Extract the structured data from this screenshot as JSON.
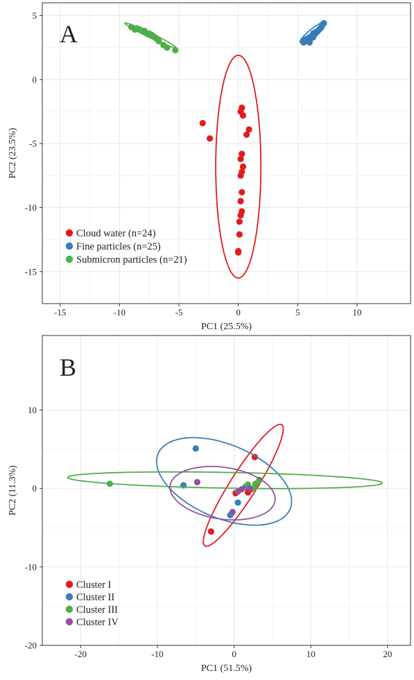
{
  "chart_data": [
    {
      "type": "scatter",
      "panel_label": "A",
      "xlabel": "PC1  (25.5%)",
      "ylabel": "PC2  (23.5%)",
      "xlim": [
        -16.5,
        14.5
      ],
      "ylim": [
        -17.5,
        6.0
      ],
      "xticks": [
        -15,
        -10,
        -5,
        0,
        5,
        10
      ],
      "yticks": [
        -15,
        -10,
        -5,
        0,
        5
      ],
      "grid": true,
      "legend_position": "bottom-left",
      "series": [
        {
          "name": "Cloud water (n=24)",
          "color": "#e41a1c",
          "points": [
            [
              0.3,
              -2.2
            ],
            [
              0.2,
              -2.5
            ],
            [
              0.4,
              -2.8
            ],
            [
              -3.0,
              -3.4
            ],
            [
              -2.4,
              -4.6
            ],
            [
              0.9,
              -3.9
            ],
            [
              0.7,
              -4.3
            ],
            [
              0.3,
              -5.8
            ],
            [
              0.2,
              -6.2
            ],
            [
              0.4,
              -6.8
            ],
            [
              0.3,
              -7.2
            ],
            [
              0.2,
              -7.5
            ],
            [
              0.3,
              -8.8
            ],
            [
              0.2,
              -9.5
            ],
            [
              0.3,
              -10.3
            ],
            [
              0.2,
              -10.6
            ],
            [
              0.1,
              -11.1
            ],
            [
              0.1,
              -12.1
            ],
            [
              0.0,
              -13.4
            ],
            [
              0.0,
              -13.5
            ]
          ],
          "ellipse": {
            "cx": 0.0,
            "cy": -6.8,
            "rx": 1.9,
            "ry": 8.7,
            "angle_deg": 0
          }
        },
        {
          "name": "Fine particles (n=25)",
          "color": "#377eb8",
          "points": [
            [
              5.5,
              2.9
            ],
            [
              5.6,
              3.1
            ],
            [
              5.8,
              3.2
            ],
            [
              6.0,
              3.3
            ],
            [
              6.2,
              3.4
            ],
            [
              6.3,
              3.6
            ],
            [
              6.5,
              3.7
            ],
            [
              6.7,
              3.8
            ],
            [
              6.8,
              3.9
            ],
            [
              7.0,
              4.1
            ],
            [
              7.1,
              4.3
            ],
            [
              6.4,
              3.5
            ],
            [
              6.1,
              3.2
            ],
            [
              5.7,
              3.0
            ],
            [
              6.9,
              4.0
            ],
            [
              6.6,
              3.7
            ],
            [
              5.9,
              3.1
            ],
            [
              6.3,
              3.3
            ],
            [
              7.2,
              4.4
            ],
            [
              6.0,
              2.9
            ],
            [
              5.5,
              3.0
            ]
          ],
          "ellipse": {
            "cx": 6.3,
            "cy": 3.7,
            "rx": 1.35,
            "ry": 0.28,
            "angle_deg": 36
          }
        },
        {
          "name": "Submicron particles (n=21)",
          "color": "#4daf4a",
          "points": [
            [
              -9.0,
              4.1
            ],
            [
              -8.7,
              3.9
            ],
            [
              -8.3,
              3.9
            ],
            [
              -7.9,
              3.8
            ],
            [
              -7.5,
              3.6
            ],
            [
              -7.2,
              3.4
            ],
            [
              -6.9,
              3.2
            ],
            [
              -6.3,
              2.7
            ],
            [
              -5.3,
              2.3
            ],
            [
              -8.0,
              3.8
            ],
            [
              -7.7,
              3.6
            ],
            [
              -7.0,
              3.3
            ],
            [
              -8.5,
              4.0
            ],
            [
              -7.3,
              3.5
            ],
            [
              -6.7,
              3.0
            ],
            [
              -6.0,
              2.5
            ]
          ],
          "ellipse": {
            "cx": -7.4,
            "cy": 3.45,
            "rx": 2.35,
            "ry": 0.18,
            "angle_deg": -24
          }
        }
      ]
    },
    {
      "type": "scatter",
      "panel_label": "B",
      "xlabel": "PC1  (51.5%)",
      "ylabel": "PC2  (11.3%)",
      "xlim": [
        -25.0,
        23.0
      ],
      "ylim": [
        -20.0,
        19.5
      ],
      "xticks": [
        -20,
        -10,
        0,
        10,
        20
      ],
      "yticks": [
        -20,
        -10,
        0,
        10
      ],
      "grid": true,
      "legend_position": "bottom-left",
      "series": [
        {
          "name": "Cluster I",
          "color": "#e41a1c",
          "points": [
            [
              2.7,
              4.0
            ],
            [
              -3.0,
              -5.5
            ],
            [
              1.8,
              -0.5
            ],
            [
              2.2,
              -0.1
            ],
            [
              0.2,
              -0.6
            ]
          ],
          "ellipse": {
            "cx": 1.2,
            "cy": 0.4,
            "rx": 9.2,
            "ry": 1.7,
            "angle_deg": 57
          }
        },
        {
          "name": "Cluster II",
          "color": "#377eb8",
          "points": [
            [
              -5.0,
              5.1
            ],
            [
              -6.6,
              0.4
            ],
            [
              0.5,
              -1.8
            ],
            [
              -0.5,
              -3.4
            ],
            [
              1.5,
              0.2
            ]
          ],
          "ellipse": {
            "cx": -1.3,
            "cy": 0.9,
            "rx": 9.3,
            "ry": 4.7,
            "angle_deg": -22
          }
        },
        {
          "name": "Cluster III",
          "color": "#4daf4a",
          "points": [
            [
              -16.2,
              0.6
            ],
            [
              1.8,
              0.5
            ],
            [
              2.6,
              0.1
            ],
            [
              3.3,
              1.1
            ],
            [
              2.8,
              0.6
            ]
          ],
          "ellipse": {
            "cx": -1.2,
            "cy": 1.05,
            "rx": 20.5,
            "ry": 1.0,
            "angle_deg": -1
          }
        },
        {
          "name": "Cluster IV",
          "color": "#984ea3",
          "points": [
            [
              -4.8,
              0.8
            ],
            [
              1.0,
              -0.1
            ],
            [
              -0.2,
              -3.0
            ],
            [
              0.5,
              -0.4
            ],
            [
              2.0,
              0.0
            ]
          ],
          "ellipse": {
            "cx": -1.5,
            "cy": -0.6,
            "rx": 6.9,
            "ry": 3.3,
            "angle_deg": -8
          }
        }
      ]
    }
  ]
}
